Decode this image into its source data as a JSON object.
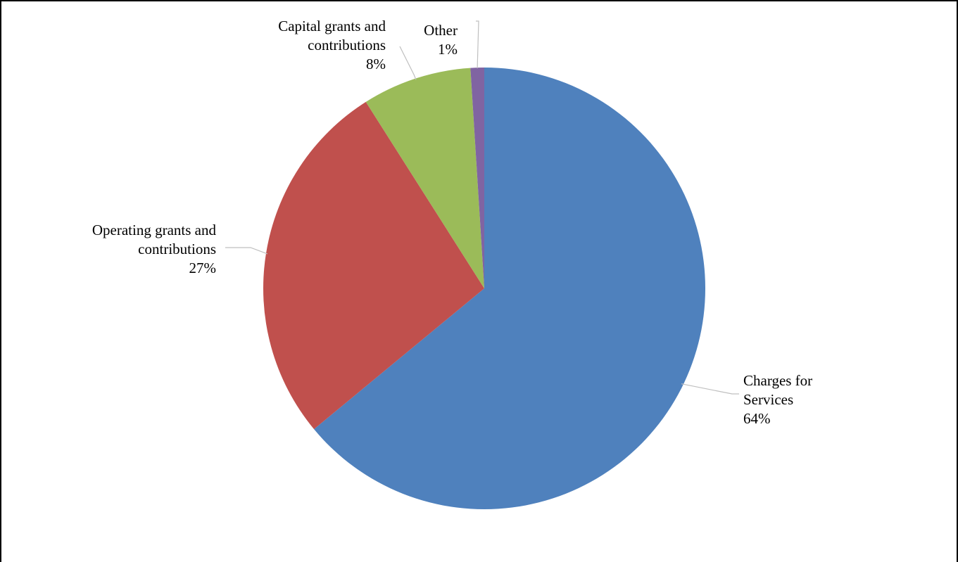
{
  "chart_data": {
    "type": "pie",
    "title": "",
    "start_angle_deg": 0,
    "direction": "clockwise",
    "slices": [
      {
        "name": "Charges for Services",
        "label_lines": [
          "Charges for",
          "Services",
          "64%"
        ],
        "value": 64,
        "color": "#4F81BD"
      },
      {
        "name": "Operating grants and contributions",
        "label_lines": [
          "Operating grants and",
          "contributions",
          "27%"
        ],
        "value": 27,
        "color": "#C0504D"
      },
      {
        "name": "Capital grants and contributions",
        "label_lines": [
          "Capital grants and",
          "contributions",
          "8%"
        ],
        "value": 8,
        "color": "#9BBB59"
      },
      {
        "name": "Other",
        "label_lines": [
          "Other",
          "1%"
        ],
        "value": 1,
        "color": "#8064A2"
      }
    ],
    "data_labels": "outside-with-leader-lines",
    "legend": "none"
  }
}
